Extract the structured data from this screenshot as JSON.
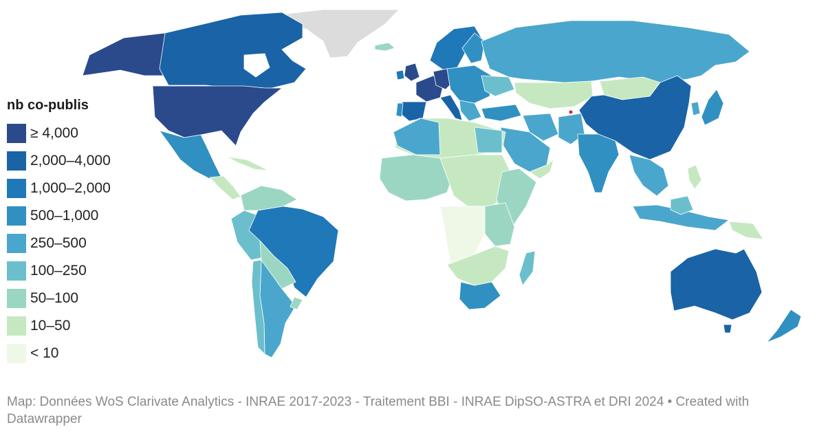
{
  "legend": {
    "title": "nb co-publis",
    "items": [
      {
        "label": "≥ 4,000",
        "color": "#2a4a8c"
      },
      {
        "label": "2,000–4,000",
        "color": "#1a63a6"
      },
      {
        "label": "1,000–2,000",
        "color": "#1f78b8"
      },
      {
        "label": "500–1,000",
        "color": "#3190c2"
      },
      {
        "label": "250–500",
        "color": "#4aa6cc"
      },
      {
        "label": "100–250",
        "color": "#6bbfcc"
      },
      {
        "label": "50–100",
        "color": "#9bd6c3"
      },
      {
        "label": "10–50",
        "color": "#c6e8c1"
      },
      {
        "label": "< 10",
        "color": "#eff8e6"
      }
    ],
    "no_data_color": "#dcdcdc"
  },
  "footer": {
    "source": "Map: Données WoS Clarivate Analytics - INRAE 2017-2023 - Traitement BBI - INRAE DipSO-ASTRA et DRI 2024 • Created with Datawrapper"
  }
}
